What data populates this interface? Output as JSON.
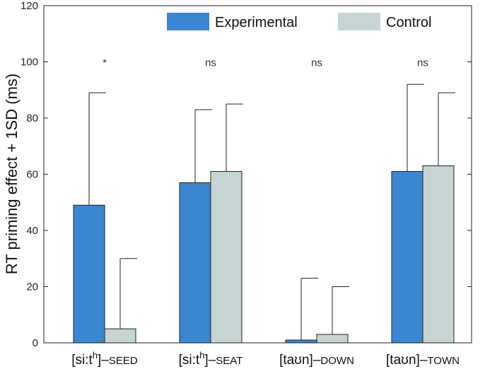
{
  "chart_data": {
    "type": "bar",
    "title": "",
    "xlabel": "",
    "ylabel": "RT priming effect + 1SD (ms)",
    "ylim": [
      0,
      120
    ],
    "yticks": [
      "0",
      "20",
      "40",
      "60",
      "80",
      "100",
      "120"
    ],
    "categories": [
      {
        "bracket": "[si:t",
        "sup": "h",
        "close": "]",
        "word": "SEED"
      },
      {
        "bracket": "[si:t",
        "sup": "h",
        "close": "]",
        "word": "SEAT"
      },
      {
        "bracket": "[taʊn]",
        "sup": "",
        "close": "",
        "word": "DOWN"
      },
      {
        "bracket": "[taʊn]",
        "sup": "",
        "close": "",
        "word": "TOWN"
      }
    ],
    "dash": "–",
    "series": [
      {
        "name": "Experimental",
        "color": "#3a86d0",
        "values": [
          49,
          57,
          1,
          61
        ],
        "error_top": [
          89,
          83,
          23,
          92
        ]
      },
      {
        "name": "Control",
        "color": "#c6d4d4",
        "values": [
          5,
          61,
          3,
          63
        ],
        "error_top": [
          30,
          85,
          20,
          89
        ]
      }
    ],
    "significance": [
      "*",
      "ns",
      "ns",
      "ns"
    ],
    "legend_position": "top-right"
  }
}
